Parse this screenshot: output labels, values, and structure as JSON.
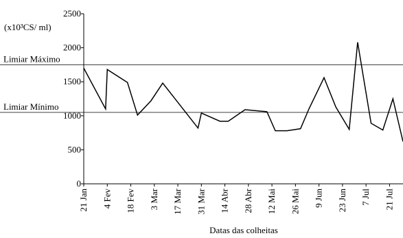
{
  "chart_data": {
    "type": "line",
    "y_label": "(x10³CS/ ml)",
    "x_label": "Datas das colheitas",
    "x": [
      0,
      13,
      14,
      26,
      32,
      40,
      47,
      68,
      70,
      81,
      86,
      96,
      109,
      114,
      121,
      129,
      134,
      143,
      150,
      158,
      163,
      171,
      178,
      184,
      190
    ],
    "series": [
      {
        "color": "#000000",
        "values": [
          1700,
          1100,
          1680,
          1490,
          1010,
          1220,
          1480,
          820,
          1040,
          920,
          920,
          1090,
          1060,
          780,
          780,
          810,
          1100,
          1560,
          1130,
          800,
          2080,
          890,
          790,
          1250,
          620
        ]
      }
    ],
    "xlim": [
      0,
      190
    ],
    "xticks": [
      {
        "value": 0,
        "label": "21 Jan"
      },
      {
        "value": 14,
        "label": "4 Fev"
      },
      {
        "value": 28,
        "label": "18 Fev"
      },
      {
        "value": 42,
        "label": "3 Mar"
      },
      {
        "value": 56,
        "label": "17 Mar"
      },
      {
        "value": 70,
        "label": "31 Mar"
      },
      {
        "value": 84,
        "label": "14 Abr"
      },
      {
        "value": 98,
        "label": "28 Abr"
      },
      {
        "value": 112,
        "label": "12 Mai"
      },
      {
        "value": 126,
        "label": "26 Mai"
      },
      {
        "value": 140,
        "label": "9 Jun"
      },
      {
        "value": 154,
        "label": "23 Jun"
      },
      {
        "value": 168,
        "label": "7 Jul"
      },
      {
        "value": 182,
        "label": "21 Jul"
      }
    ],
    "ylim": [
      0,
      2500
    ],
    "yticks": [
      0,
      500,
      1000,
      1500,
      2000,
      2500
    ],
    "thresholds": [
      {
        "label": "Limiar Máximo",
        "value": 1750
      },
      {
        "label": "Limiar Mínimo",
        "value": 1050
      }
    ]
  }
}
